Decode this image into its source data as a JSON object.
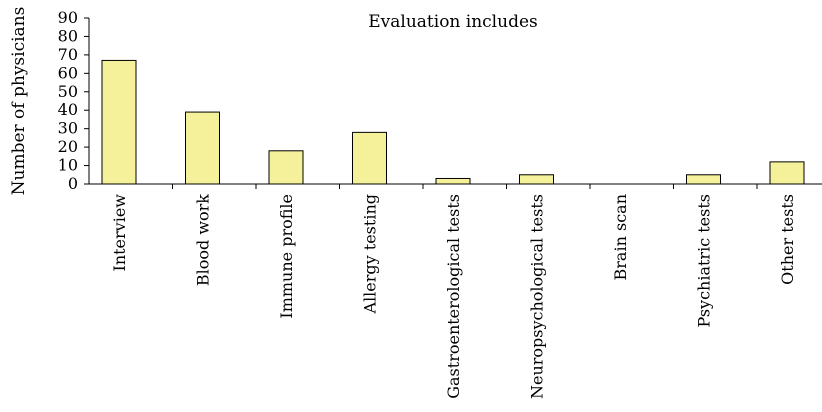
{
  "chart_data": {
    "type": "bar",
    "title": "Evaluation includes",
    "xlabel": "",
    "ylabel": "Number of physicians",
    "ylim": [
      0,
      90
    ],
    "yticks": [
      0,
      10,
      20,
      30,
      40,
      50,
      60,
      70,
      80,
      90
    ],
    "grid": false,
    "legend": "none",
    "bar_color": "#f5f09a",
    "categories": [
      "Interview",
      "Blood work",
      "Immune profile",
      "Allergy testing",
      "Gastroenterological tests",
      "Neuropsychological tests",
      "Brain scan",
      "Psychiatric tests",
      "Other tests"
    ],
    "values": [
      67,
      39,
      18,
      28,
      3,
      5,
      0,
      5,
      12
    ]
  }
}
